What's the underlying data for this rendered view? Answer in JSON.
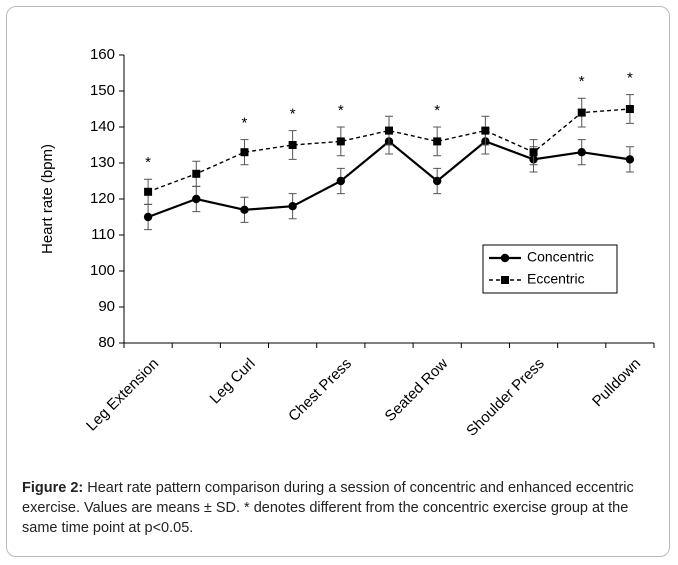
{
  "chart_data": {
    "type": "line",
    "ylabel": "Heart rate (bpm)",
    "categories": [
      "Leg Extension",
      null,
      "Leg Curl",
      null,
      "Chest Press",
      null,
      "Seated Row",
      null,
      "Shoulder Press",
      null,
      "Pulldown"
    ],
    "series": [
      {
        "name": "Concentric",
        "color": "#000000",
        "marker": "circle",
        "linestyle": "solid",
        "values": [
          115,
          120,
          117,
          118,
          125,
          136,
          125,
          136,
          131,
          133,
          131
        ],
        "errors": [
          3.5,
          3.5,
          3.5,
          3.5,
          3.5,
          3.5,
          3.5,
          3.5,
          3.5,
          3.5,
          3.5
        ]
      },
      {
        "name": "Eccentric",
        "color": "#000000",
        "marker": "square",
        "linestyle": "dashed",
        "values": [
          122,
          127,
          133,
          135,
          136,
          139,
          136,
          139,
          133,
          144,
          145
        ],
        "errors": [
          3.5,
          3.5,
          3.5,
          4,
          4,
          4,
          4,
          4,
          3.5,
          4,
          4
        ]
      }
    ],
    "significance": [
      "*",
      null,
      "*",
      "*",
      "*",
      null,
      "*",
      null,
      null,
      "*",
      "*"
    ],
    "ylim": [
      80,
      160
    ],
    "yticks": [
      80,
      90,
      100,
      110,
      120,
      130,
      140,
      150,
      160
    ],
    "legend": "lower right",
    "grid": false
  },
  "caption_label": "Figure 2:",
  "caption": "Heart rate pattern comparison during a session of concentric and enhanced eccentric exercise. Values are means ± SD. * denotes different from the concentric exercise group at the same time point at p<0.05."
}
